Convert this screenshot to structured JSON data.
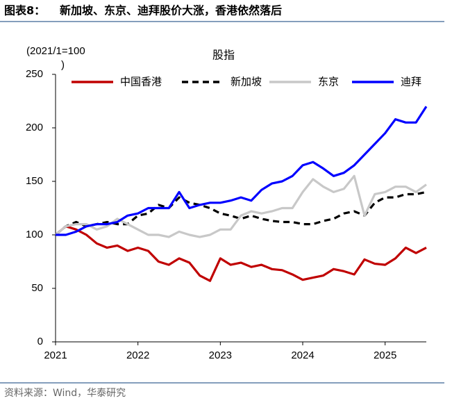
{
  "chart_data": {
    "type": "line",
    "figure_label": "图表8：",
    "title": "新加坡、东京、迪拜股价大涨，香港依然落后",
    "subtitle": "股指",
    "y_label": [
      "(2021/1=100",
      ")"
    ],
    "source": "资料来源：Wind，华泰研究",
    "x": [
      2021,
      2021.125,
      2021.25,
      2021.375,
      2021.5,
      2021.625,
      2021.75,
      2021.875,
      2022,
      2022.125,
      2022.25,
      2022.375,
      2022.5,
      2022.625,
      2022.75,
      2022.875,
      2023,
      2023.125,
      2023.25,
      2023.375,
      2023.5,
      2023.625,
      2023.75,
      2023.875,
      2024,
      2024.125,
      2024.25,
      2024.375,
      2024.5,
      2024.625,
      2024.75,
      2024.875,
      2025,
      2025.125,
      2025.25,
      2025.375,
      2025.5
    ],
    "xlim": [
      2021,
      2025.5
    ],
    "xticks": [
      2021,
      2022,
      2023,
      2024,
      2025
    ],
    "ylim": [
      0,
      250
    ],
    "yticks": [
      0,
      50,
      100,
      150,
      200,
      250
    ],
    "legend": "top",
    "series": [
      {
        "name": "中国香港",
        "color": "#c00000",
        "style": "solid",
        "values": [
          100,
          108,
          105,
          100,
          92,
          88,
          90,
          85,
          88,
          85,
          75,
          72,
          78,
          74,
          62,
          57,
          78,
          72,
          74,
          70,
          72,
          68,
          67,
          63,
          58,
          60,
          62,
          68,
          66,
          63,
          77,
          73,
          72,
          78,
          88,
          83,
          88
        ]
      },
      {
        "name": "新加坡",
        "color": "#000000",
        "style": "dashed",
        "values": [
          100,
          108,
          112,
          108,
          110,
          112,
          110,
          110,
          118,
          120,
          128,
          125,
          135,
          130,
          128,
          125,
          120,
          118,
          115,
          118,
          115,
          113,
          112,
          112,
          110,
          110,
          113,
          115,
          120,
          122,
          118,
          130,
          135,
          135,
          138,
          138,
          140
        ]
      },
      {
        "name": "东京",
        "color": "#c8c8c8",
        "style": "solid",
        "values": [
          100,
          108,
          110,
          110,
          105,
          108,
          115,
          110,
          105,
          100,
          100,
          98,
          103,
          100,
          98,
          100,
          105,
          105,
          118,
          122,
          120,
          122,
          125,
          125,
          140,
          152,
          145,
          140,
          143,
          155,
          118,
          138,
          140,
          145,
          145,
          140,
          147
        ]
      },
      {
        "name": "迪拜",
        "color": "#0000ff",
        "style": "solid",
        "values": [
          100,
          100,
          103,
          108,
          110,
          110,
          112,
          118,
          120,
          125,
          125,
          125,
          140,
          125,
          128,
          130,
          130,
          132,
          135,
          132,
          142,
          148,
          150,
          155,
          165,
          168,
          162,
          155,
          158,
          165,
          175,
          185,
          195,
          208,
          205,
          205,
          220
        ]
      }
    ]
  }
}
